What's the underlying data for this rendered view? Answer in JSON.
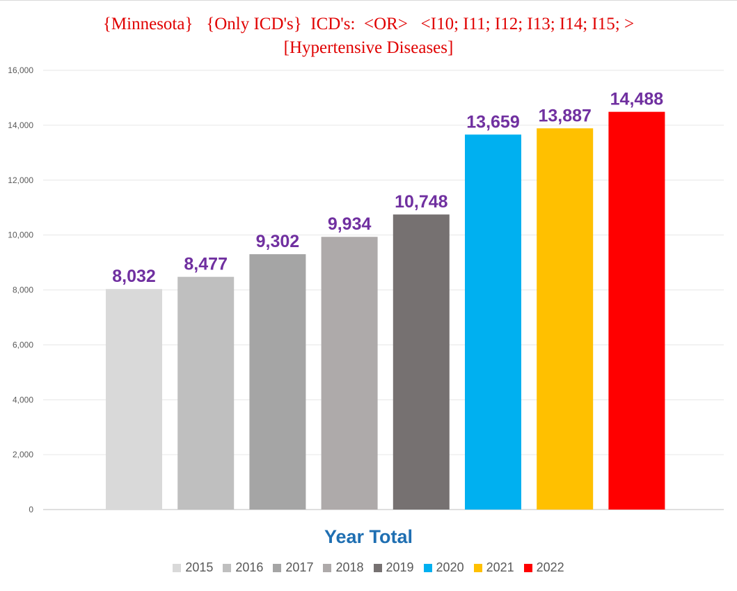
{
  "chart_data": {
    "type": "bar",
    "title_line1": "{Minnesota}   {Only ICD's}  ICD's:  <OR>   <I10; I11; I12; I13; I14; I15; >",
    "title_line2": "[Hypertensive Diseases]",
    "xlabel": "Year Total",
    "ylabel": "",
    "categories": [
      "2015",
      "2016",
      "2017",
      "2018",
      "2019",
      "2020",
      "2021",
      "2022"
    ],
    "values": [
      8032,
      8477,
      9302,
      9934,
      10748,
      13659,
      13887,
      14488
    ],
    "data_labels": [
      "8,032",
      "8,477",
      "9,302",
      "9,934",
      "10,748",
      "13,659",
      "13,887",
      "14,488"
    ],
    "colors": [
      "#d9d9d9",
      "#bfbfbf",
      "#a5a5a5",
      "#aeaaaa",
      "#767171",
      "#00b0f0",
      "#ffc000",
      "#ff0000"
    ],
    "ylim": [
      0,
      16000
    ],
    "yticks": [
      0,
      2000,
      4000,
      6000,
      8000,
      10000,
      12000,
      14000,
      16000
    ],
    "ytick_labels": [
      "0",
      "2,000",
      "4,000",
      "6,000",
      "8,000",
      "10,000",
      "12,000",
      "14,000",
      "16,000"
    ],
    "grid": true,
    "legend_position": "bottom",
    "title_color": "#e00000",
    "data_label_color": "#7030a0",
    "xlabel_color": "#1f6fb2"
  }
}
